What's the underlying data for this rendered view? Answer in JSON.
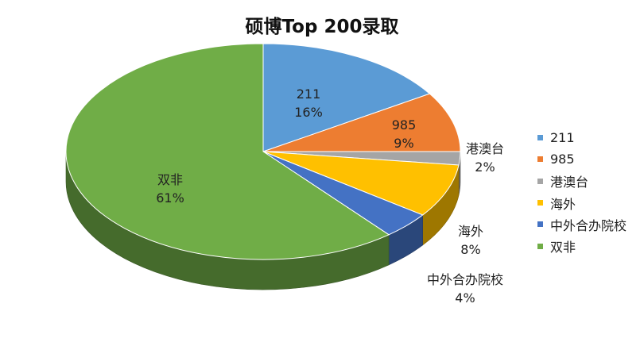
{
  "chart_data": {
    "type": "pie",
    "title": "硕博Top 200录取",
    "slices": [
      {
        "name": "211",
        "percent_label": "16%",
        "value": 16,
        "color": "#5b9bd5"
      },
      {
        "name": "985",
        "percent_label": "9%",
        "value": 9,
        "color": "#ed7d31"
      },
      {
        "name": "港澳台",
        "percent_label": "2%",
        "value": 2,
        "color": "#a5a5a5"
      },
      {
        "name": "海外",
        "percent_label": "8%",
        "value": 8,
        "color": "#ffc000"
      },
      {
        "name": "中外合办院校",
        "percent_label": "4%",
        "value": 4,
        "color": "#4472c4"
      },
      {
        "name": "双非",
        "percent_label": "61%",
        "value": 61,
        "color": "#70ad47"
      }
    ],
    "legend_position": "right",
    "style": "3d"
  }
}
